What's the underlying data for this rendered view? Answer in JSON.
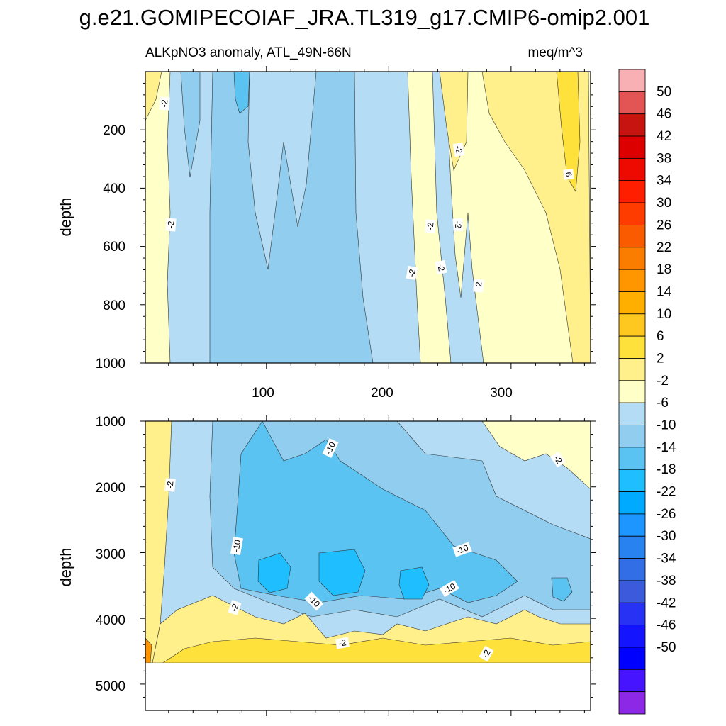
{
  "title": "g.e21.GOMIPECOIAF_JRA.TL319_g17.CMIP6-omip2.001",
  "chart_data": {
    "type": "heatmap",
    "variable": "ALKpNO3 anomaly, ATL_49N-66N",
    "units": "meq/m^3",
    "ylabel": "depth",
    "x_ticks": [
      "100",
      "200",
      "300"
    ],
    "x_range": [
      1,
      365
    ],
    "top_panel": {
      "ylim": [
        0,
        1000
      ],
      "y_ticks": [
        "200",
        "400",
        "600",
        "800",
        "1000"
      ]
    },
    "bottom_panel": {
      "ylim": [
        1000,
        5400
      ],
      "y_ticks": [
        "1000",
        "2000",
        "3000",
        "4000",
        "5000"
      ]
    },
    "contour_labels": [
      "-2",
      "-2",
      "-2",
      "-2",
      "-2",
      "-2",
      "-2",
      "-2",
      "6",
      "-2",
      "-2",
      "-10",
      "-10",
      "-10",
      "-10",
      "-10",
      "-2",
      "-2",
      "-2"
    ],
    "colorbar": {
      "labels": [
        "50",
        "46",
        "42",
        "38",
        "34",
        "30",
        "26",
        "22",
        "18",
        "14",
        "10",
        "6",
        "2",
        "-2",
        "-6",
        "-10",
        "-14",
        "-18",
        "-22",
        "-26",
        "-30",
        "-34",
        "-38",
        "-42",
        "-46",
        "-50"
      ],
      "colors": [
        "#f9b0b4",
        "#e35454",
        "#c81410",
        "#dc0000",
        "#ee0a00",
        "#ff1e00",
        "#ff3c00",
        "#fa5a00",
        "#fa7d00",
        "#ff9600",
        "#ffaf00",
        "#ffc820",
        "#ffe13c",
        "#fff08c",
        "#ffffc8",
        "#b4dcf5",
        "#91cdee",
        "#5ac3f2",
        "#1ebeff",
        "#00aaff",
        "#1e96ff",
        "#2882f0",
        "#326ee6",
        "#3c5adc",
        "#2832f5",
        "#1414ff",
        "#0000ff",
        "#4614ff",
        "#8c28e6"
      ]
    }
  }
}
